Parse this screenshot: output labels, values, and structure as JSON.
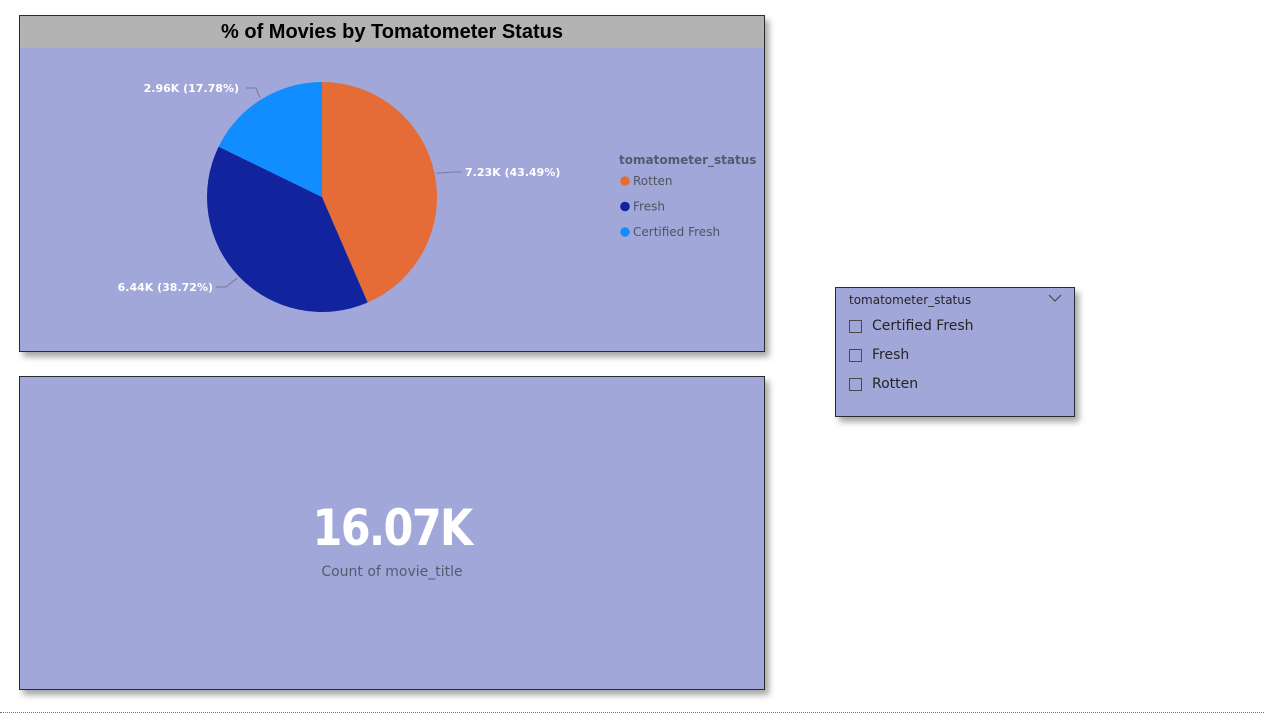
{
  "pie_visual": {
    "title": "% of Movies by Tomatometer Status",
    "legend_title": "tomatometer_status"
  },
  "chart_data": {
    "type": "pie",
    "title": "% of Movies by Tomatometer Status",
    "legend_title": "tomatometer_status",
    "legend_placement": "right",
    "slices": [
      {
        "name": "Rotten",
        "value": 7.23,
        "percent": 43.49,
        "label": "7.23K (43.49%)",
        "color": "#e66c37"
      },
      {
        "name": "Fresh",
        "value": 6.44,
        "percent": 38.72,
        "label": "6.44K (38.72%)",
        "color": "#12239e"
      },
      {
        "name": "Certified Fresh",
        "value": 2.96,
        "percent": 17.78,
        "label": "2.96K (17.78%)",
        "color": "#118dff"
      }
    ]
  },
  "card": {
    "value": "16.07K",
    "label": "Count of movie_title"
  },
  "slicer": {
    "header": "tomatometer_status",
    "items": [
      {
        "label": "Certified Fresh",
        "checked": false
      },
      {
        "label": "Fresh",
        "checked": false
      },
      {
        "label": "Rotten",
        "checked": false
      }
    ]
  },
  "colors": {
    "panel_bg": "#a1a7d9",
    "title_bar": "#b3b3b3"
  }
}
